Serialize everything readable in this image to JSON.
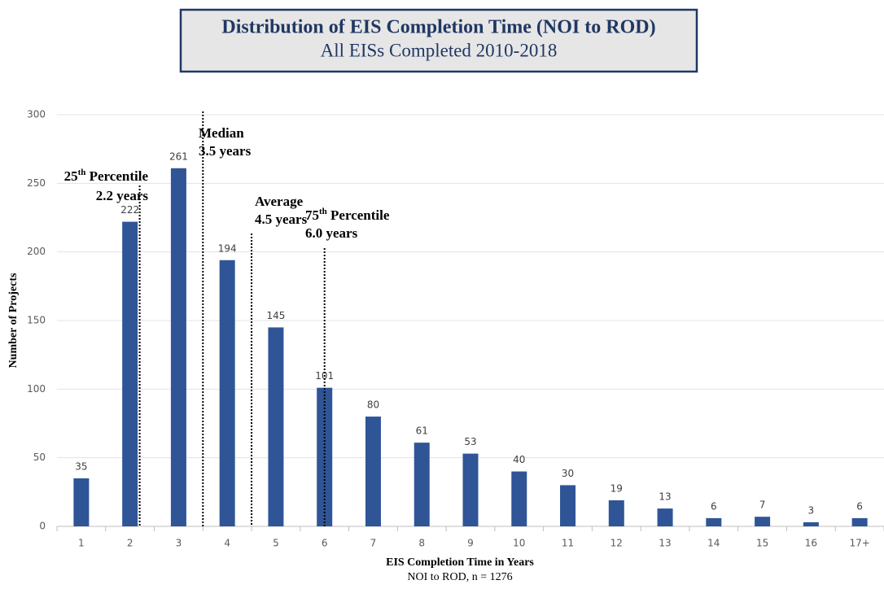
{
  "chart_data": {
    "type": "bar",
    "title": "Distribution of EIS Completion Time (NOI to ROD)",
    "subtitle": "All EISs Completed 2010-2018",
    "x_label": "EIS Completion Time in Years",
    "x_sublabel": "NOI to ROD, n = 1276",
    "y_label": "Number of Projects",
    "categories": [
      "1",
      "2",
      "3",
      "4",
      "5",
      "6",
      "7",
      "8",
      "9",
      "10",
      "11",
      "12",
      "13",
      "14",
      "15",
      "16",
      "17+"
    ],
    "values": [
      35,
      222,
      261,
      194,
      145,
      101,
      80,
      61,
      53,
      40,
      30,
      19,
      13,
      6,
      7,
      3,
      6
    ],
    "color": "#2f5597",
    "ylim": [
      0,
      300
    ],
    "yticks": [
      0,
      50,
      100,
      150,
      200,
      250,
      300
    ],
    "grid": true,
    "annotations": [
      {
        "number": "25",
        "suffix": "th",
        "text": " Percentile",
        "value_label": "2.2 years",
        "x": 2.2
      },
      {
        "number": "",
        "suffix": "",
        "text": "Median",
        "value_label": "3.5 years",
        "x": 3.5
      },
      {
        "number": "",
        "suffix": "",
        "text": "Average",
        "value_label": "4.5 years",
        "x": 4.5
      },
      {
        "number": "75",
        "suffix": "th",
        "text": " Percentile",
        "value_label": "6.0 years",
        "x": 6.0
      }
    ]
  }
}
